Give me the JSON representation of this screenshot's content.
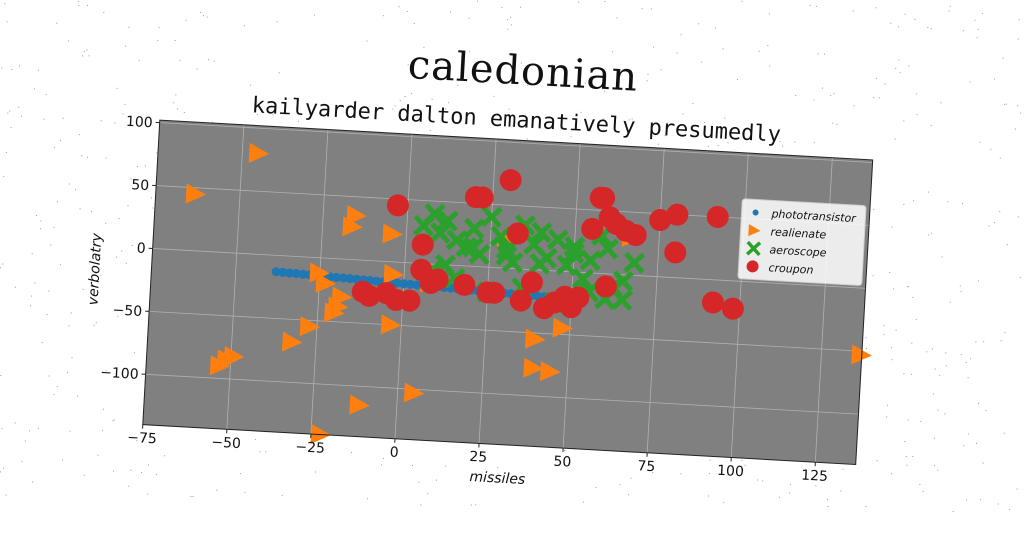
{
  "chart_data": {
    "type": "scatter",
    "suptitle": "caledonian",
    "title": "kailyarder dalton emanatively presumedly",
    "xlabel": "missiles",
    "ylabel": "verbolatry",
    "xlim": [
      -75,
      137
    ],
    "ylim": [
      -140,
      102
    ],
    "xticks": [
      -75,
      -50,
      -25,
      0,
      25,
      50,
      75,
      100,
      125
    ],
    "yticks": [
      -100,
      -50,
      0,
      50,
      100
    ],
    "grid": true,
    "background": "#808080",
    "legend": {
      "placement": "upper right",
      "entries": [
        "phototransistor",
        "realienate",
        "aeroscope",
        "croupon"
      ]
    },
    "series": [
      {
        "name": "phototransistor",
        "marker": "circle-small",
        "color": "#1f77b4",
        "x": [
          -38,
          -36,
          -34,
          -32,
          -30,
          -28,
          -26,
          -24,
          -22,
          -20,
          -18,
          -16,
          -14,
          -12,
          -10,
          -8,
          -6,
          -4,
          -2,
          0,
          2,
          4,
          6,
          8,
          10,
          12,
          14,
          16,
          18,
          20,
          22,
          24,
          26,
          28,
          30,
          32,
          34,
          36,
          38,
          40,
          42,
          44
        ],
        "y": [
          -13,
          -13.2,
          -13.4,
          -13.6,
          -13.8,
          -14,
          -14.2,
          -14.4,
          -14.6,
          -14.8,
          -15,
          -15.2,
          -15.4,
          -15.6,
          -15.8,
          -16,
          -16.2,
          -16.4,
          -16.6,
          -16.8,
          -17,
          -17.2,
          -17.4,
          -17.6,
          -17.8,
          -18,
          -18.2,
          -18.4,
          -18.6,
          -18.8,
          -19,
          -19.2,
          -19.4,
          -19.6,
          -19.8,
          -20,
          -20.2,
          -20.4,
          -20.6,
          -20.8,
          -21,
          -21.2
        ]
      },
      {
        "name": "realienate",
        "marker": "triangle-right",
        "color": "#ff7f0e",
        "x": [
          -45,
          -63,
          -15,
          -16,
          -4,
          -3,
          -23,
          -18,
          -19,
          -20,
          -27,
          -32,
          -49,
          -51,
          -53,
          -3,
          5,
          -11,
          -22,
          137,
          40,
          40,
          45,
          48,
          -25,
          8,
          30,
          67
        ],
        "y": [
          80,
          45,
          35,
          26,
          22,
          -10,
          -20,
          -30,
          -38,
          -43,
          -55,
          -68,
          -82,
          -85,
          -90,
          -50,
          -103,
          -115,
          -140,
          -53,
          -55,
          -78,
          -80,
          -45,
          -12,
          -15,
          22,
          30
        ]
      },
      {
        "name": "aeroscope",
        "marker": "x",
        "color": "#2ca02c",
        "x": [
          5,
          8,
          10,
          12,
          15,
          18,
          20,
          22,
          25,
          28,
          30,
          32,
          35,
          38,
          40,
          42,
          45,
          48,
          50,
          53,
          55,
          58,
          60,
          62,
          65,
          68,
          8,
          12,
          15,
          20,
          25,
          30,
          35,
          40,
          45,
          50,
          55,
          60,
          65
        ],
        "y": [
          30,
          40,
          25,
          35,
          20,
          15,
          30,
          10,
          40,
          25,
          15,
          5,
          35,
          20,
          30,
          10,
          25,
          5,
          15,
          -5,
          -15,
          30,
          20,
          -10,
          -20,
          10,
          -5,
          0,
          -10,
          15,
          -20,
          10,
          -15,
          5,
          -25,
          20,
          10,
          -20,
          -5
        ]
      },
      {
        "name": "croupon",
        "marker": "circle-large",
        "color": "#d62728",
        "x": [
          -3,
          20,
          22,
          30,
          33,
          5,
          2,
          8,
          27,
          25,
          38,
          42,
          45,
          48,
          52,
          55,
          57,
          60,
          62,
          65,
          68,
          75,
          80,
          80,
          92,
          92,
          98,
          10,
          -10,
          -12,
          -5,
          -2,
          5,
          18,
          35,
          50,
          60,
          58
        ],
        "y": [
          45,
          55,
          55,
          70,
          28,
          15,
          -30,
          -15,
          -20,
          -20,
          -10,
          -30,
          -25,
          -20,
          -20,
          35,
          60,
          45,
          40,
          35,
          32,
          45,
          50,
          20,
          50,
          -18,
          -22,
          -12,
          -28,
          -25,
          -25,
          -30,
          -5,
          -15,
          -25,
          -28,
          -10,
          60
        ]
      }
    ]
  }
}
